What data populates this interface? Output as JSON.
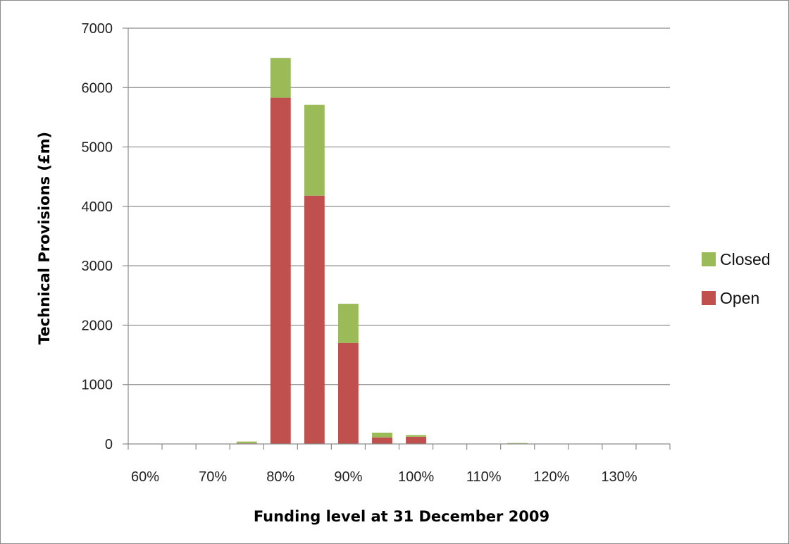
{
  "chart_data": {
    "type": "bar",
    "stacked": true,
    "categories": [
      "60%",
      "65%",
      "70%",
      "75%",
      "80%",
      "85%",
      "90%",
      "95%",
      "100%",
      "105%",
      "110%",
      "115%",
      "120%",
      "125%",
      "130%",
      "135%"
    ],
    "x_tick_labels": [
      "60%",
      "70%",
      "80%",
      "90%",
      "100%",
      "110%",
      "120%",
      "130%"
    ],
    "series": [
      {
        "name": "Open",
        "color": "#c0504d",
        "values": [
          0,
          0,
          0,
          10,
          5830,
          4180,
          1700,
          110,
          120,
          0,
          0,
          5,
          0,
          0,
          0,
          0
        ]
      },
      {
        "name": "Closed",
        "color": "#9bbb59",
        "values": [
          0,
          0,
          0,
          30,
          670,
          1530,
          660,
          80,
          30,
          0,
          0,
          10,
          0,
          0,
          0,
          0
        ]
      }
    ],
    "xlabel": "Funding level at 31 December 2009",
    "ylabel": "Technical Provisions (£m)",
    "ylim": [
      0,
      7000
    ],
    "y_ticks": [
      0,
      1000,
      2000,
      3000,
      4000,
      5000,
      6000,
      7000
    ],
    "grid": true,
    "legend_position": "right"
  }
}
